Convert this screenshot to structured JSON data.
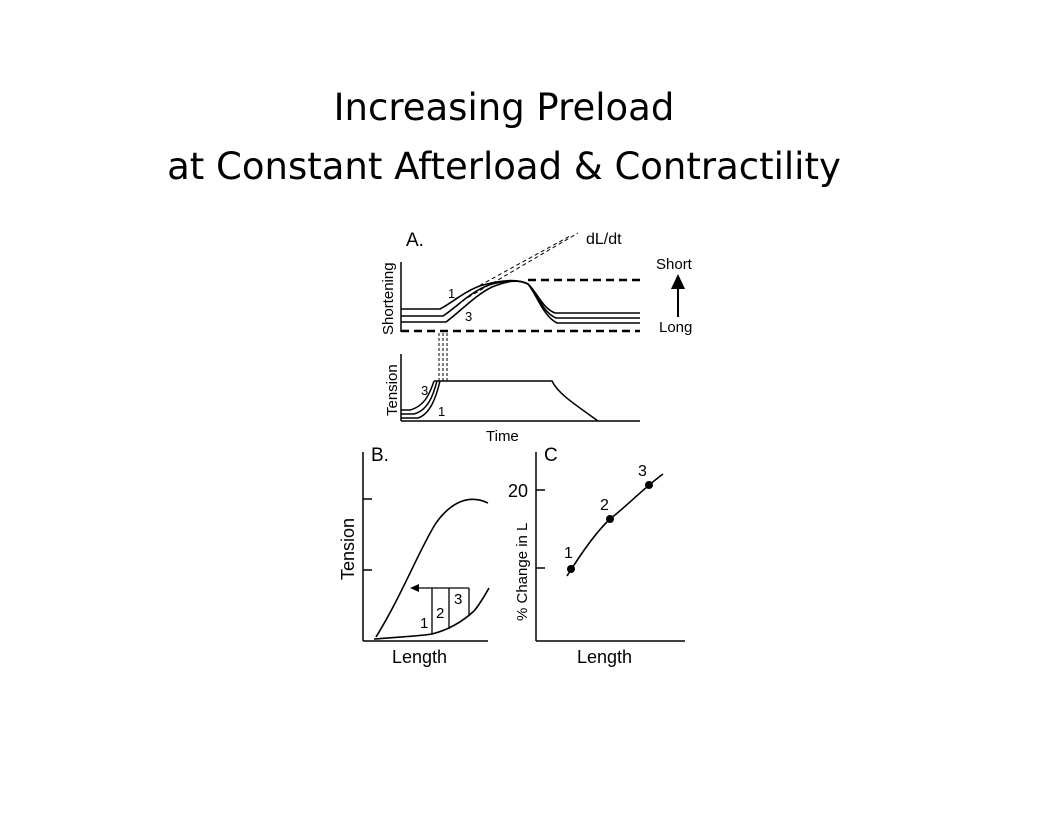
{
  "slide": {
    "title_line1": "Increasing Preload",
    "title_line2": "at Constant Afterload & Contractility"
  },
  "figure": {
    "panel_a": {
      "label": "A.",
      "shortening_ylabel": "Shortening",
      "tension_ylabel": "Tension",
      "xlabel": "Time",
      "slope_label": "dL/dt",
      "short_label": "Short",
      "long_label": "Long",
      "curve_label_1": "1",
      "curve_label_3": "3",
      "tension_label_3": "3",
      "tension_label_1": "1"
    },
    "panel_b": {
      "label": "B.",
      "ylabel": "Tension",
      "xlabel": "Length",
      "bar_labels": [
        "1",
        "2",
        "3"
      ]
    },
    "panel_c": {
      "label": "C",
      "ylabel": "% Change in L",
      "xlabel": "Length",
      "tick_label": "20",
      "point_labels": [
        "1",
        "2",
        "3"
      ]
    }
  }
}
